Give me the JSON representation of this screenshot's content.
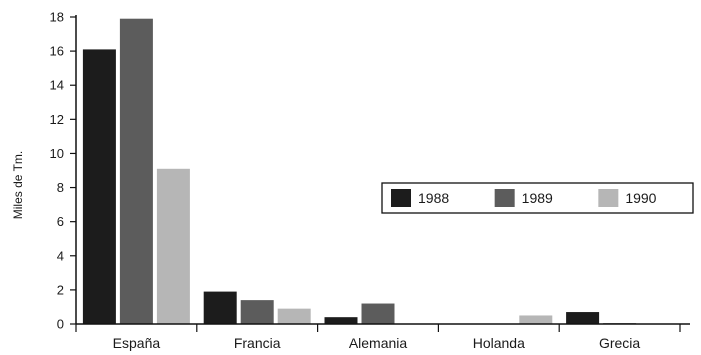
{
  "chart_data": {
    "type": "bar",
    "title": "",
    "xlabel": "",
    "ylabel": "Miles de Tm.",
    "ylim": [
      0,
      18
    ],
    "yticks": [
      0,
      2,
      4,
      6,
      8,
      10,
      12,
      14,
      16,
      18
    ],
    "categories": [
      "España",
      "Francia",
      "Alemania",
      "Holanda",
      "Grecia"
    ],
    "series": [
      {
        "name": "1988",
        "color": "#1c1c1c",
        "values": [
          16.1,
          1.9,
          0.4,
          0.0,
          0.7
        ]
      },
      {
        "name": "1989",
        "color": "#5c5c5c",
        "values": [
          17.9,
          1.4,
          1.2,
          0.0,
          0.05
        ]
      },
      {
        "name": "1990",
        "color": "#b6b6b6",
        "values": [
          9.1,
          0.9,
          0.0,
          0.5,
          0.0
        ]
      }
    ],
    "grid": false,
    "legend": "right"
  }
}
